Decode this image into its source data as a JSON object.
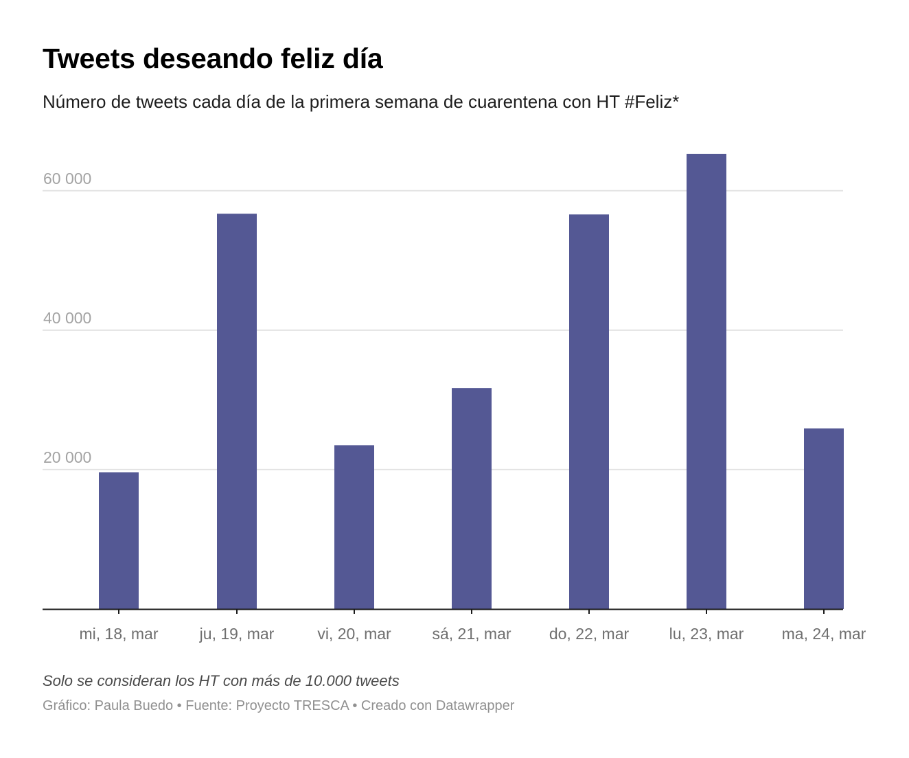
{
  "chart_data": {
    "type": "bar",
    "title": "Tweets deseando feliz día",
    "subtitle": "Número de tweets cada día de la primera semana de cuarentena con HT #Feliz*",
    "categories": [
      "mi, 18, mar",
      "ju, 19, mar",
      "vi, 20, mar",
      "sá, 21, mar",
      "do, 22, mar",
      "lu, 23, mar",
      "ma, 24, mar"
    ],
    "values": [
      19600,
      56700,
      23500,
      31700,
      56600,
      65300,
      25900
    ],
    "ylim": [
      0,
      65300
    ],
    "yticks": [
      20000,
      40000,
      60000
    ],
    "ytick_labels": [
      "20 000",
      "40 000",
      "60 000"
    ],
    "grid": true,
    "bar_color": "#545894",
    "xlabel": "",
    "ylabel": ""
  },
  "note": "Solo se consideran los HT con más de 10.000 tweets",
  "footer": {
    "credit": "Gráfico: Paula Buedo",
    "separator": " • ",
    "source": "Fuente: Proyecto TRESCA",
    "tool": "Creado con Datawrapper"
  }
}
